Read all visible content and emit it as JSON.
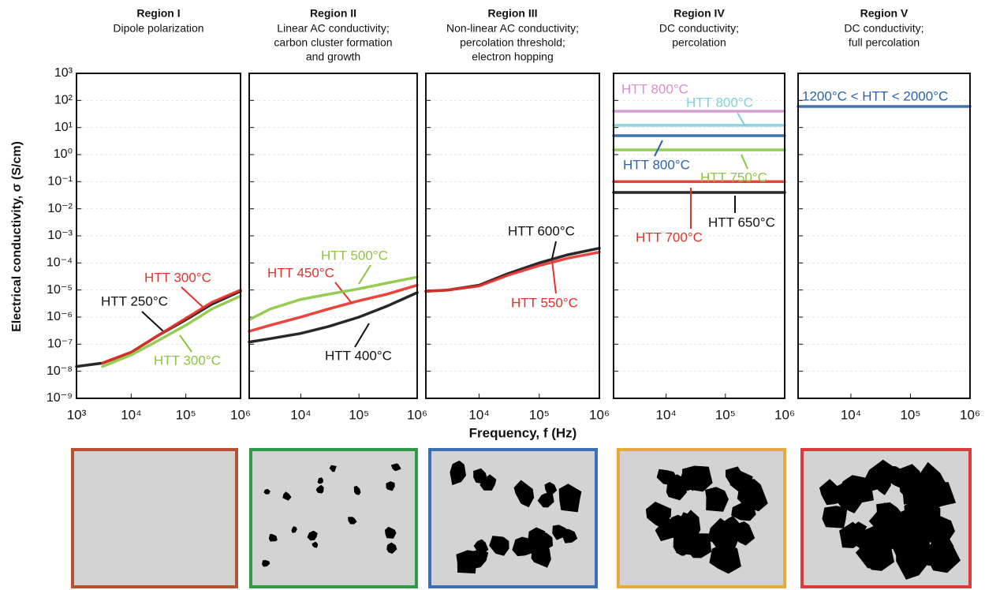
{
  "chart_data": [
    {
      "type": "line",
      "title": "Region I",
      "subtitle": [
        "Dipole polarization"
      ],
      "ylabel": "Electrical conductivity, σ (S/cm)",
      "xlog": true,
      "ylog": true,
      "grid": true,
      "x": [
        1000,
        3000,
        10000,
        30000,
        100000,
        300000,
        1000000
      ],
      "xlim": [
        1000,
        1000000
      ],
      "ylim": [
        1e-09,
        1000
      ],
      "xticks": [
        {
          "value": 1000,
          "label": "10³"
        },
        {
          "value": 10000,
          "label": "10⁴"
        },
        {
          "value": 100000,
          "label": "10⁵"
        },
        {
          "value": 1000000,
          "label": "10⁶"
        }
      ],
      "yticks": [
        {
          "value": 1e-09,
          "label": "10⁻⁹"
        },
        {
          "value": 1e-08,
          "label": "10⁻⁸"
        },
        {
          "value": 1e-07,
          "label": "10⁻⁷"
        },
        {
          "value": 1e-06,
          "label": "10⁻⁶"
        },
        {
          "value": 1e-05,
          "label": "10⁻⁵"
        },
        {
          "value": 0.0001,
          "label": "10⁻⁴"
        },
        {
          "value": 0.001,
          "label": "10⁻³"
        },
        {
          "value": 0.01,
          "label": "10⁻²"
        },
        {
          "value": 0.1,
          "label": "10⁻¹"
        },
        {
          "value": 1,
          "label": "10⁰"
        },
        {
          "value": 10,
          "label": "10¹"
        },
        {
          "value": 100,
          "label": "10²"
        },
        {
          "value": 1000,
          "label": "10³"
        }
      ],
      "series": [
        {
          "name": "HTT 250°C",
          "color": "#111111",
          "values": [
            1.5e-08,
            2e-08,
            5e-08,
            2e-07,
            8e-07,
            3e-06,
            9e-06
          ]
        },
        {
          "name": "HTT 300°C",
          "color": "#e8302a",
          "values": [
            null,
            2e-08,
            5e-08,
            2e-07,
            9e-07,
            3.5e-06,
            1e-05
          ]
        },
        {
          "name": "HTT 300°C",
          "color": "#8cc63f",
          "values": [
            null,
            1.5e-08,
            4e-08,
            1.3e-07,
            5e-07,
            2e-06,
            6e-06
          ]
        }
      ]
    },
    {
      "type": "line",
      "title": "Region II",
      "subtitle": [
        "Linear AC conductivity;",
        "carbon cluster formation",
        "and growth"
      ],
      "xlog": true,
      "ylog": true,
      "grid": true,
      "x": [
        1300,
        3000,
        10000,
        30000,
        100000,
        300000,
        1000000
      ],
      "xlim": [
        1300,
        1000000
      ],
      "ylim": [
        1e-09,
        1000
      ],
      "xticks": [
        {
          "value": 10000,
          "label": "10⁴"
        },
        {
          "value": 100000,
          "label": "10⁵"
        },
        {
          "value": 1000000,
          "label": "10⁶"
        }
      ],
      "series": [
        {
          "name": "HTT 400°C",
          "color": "#111111",
          "values": [
            1.2e-07,
            1.6e-07,
            2.5e-07,
            4.5e-07,
            1e-06,
            2.5e-06,
            8e-06
          ]
        },
        {
          "name": "HTT 450°C",
          "color": "#e8302a",
          "values": [
            3e-07,
            5e-07,
            1e-06,
            2e-06,
            4e-06,
            7e-06,
            1.5e-05
          ]
        },
        {
          "name": "HTT 500°C",
          "color": "#8cc63f",
          "values": [
            8e-07,
            2e-06,
            4.5e-06,
            7e-06,
            1.1e-05,
            1.8e-05,
            3e-05
          ]
        }
      ]
    },
    {
      "type": "line",
      "title": "Region III",
      "subtitle": [
        "Non-linear AC conductivity;",
        "percolation threshold;",
        "electron hopping"
      ],
      "xlabel": "Frequency, f (Hz)",
      "xlog": true,
      "ylog": true,
      "grid": true,
      "x": [
        1300,
        3000,
        10000,
        30000,
        100000,
        300000,
        1000000
      ],
      "xlim": [
        1300,
        1000000
      ],
      "ylim": [
        1e-09,
        1000
      ],
      "xticks": [
        {
          "value": 10000,
          "label": "10⁴"
        },
        {
          "value": 100000,
          "label": "10⁵"
        },
        {
          "value": 1000000,
          "label": "10⁶"
        }
      ],
      "series": [
        {
          "name": "HTT 600°C",
          "color": "#111111",
          "values": [
            9e-06,
            1e-05,
            1.5e-05,
            4e-05,
            0.0001,
            0.0002,
            0.00035
          ]
        },
        {
          "name": "HTT 550°C",
          "color": "#e8302a",
          "values": [
            9e-06,
            1e-05,
            1.4e-05,
            3.5e-05,
            8e-05,
            0.00015,
            0.00025
          ]
        }
      ]
    },
    {
      "type": "line",
      "title": "Region IV",
      "subtitle": [
        "DC conductivity;",
        "percolation"
      ],
      "xlog": true,
      "ylog": true,
      "grid": true,
      "x": [
        1300,
        3000,
        10000,
        30000,
        100000,
        300000,
        1000000
      ],
      "xlim": [
        1300,
        1000000
      ],
      "ylim": [
        1e-09,
        1000
      ],
      "xticks": [
        {
          "value": 10000,
          "label": "10⁴"
        },
        {
          "value": 100000,
          "label": "10⁵"
        },
        {
          "value": 1000000,
          "label": "10⁶"
        }
      ],
      "series": [
        {
          "name": "HTT 650°C",
          "color": "#111111",
          "values": [
            0.04,
            0.04,
            0.04,
            0.04,
            0.04,
            0.04,
            0.04
          ]
        },
        {
          "name": "HTT 700°C",
          "color": "#e8302a",
          "values": [
            0.1,
            0.1,
            0.1,
            0.1,
            0.1,
            0.1,
            0.1
          ]
        },
        {
          "name": "HTT 750°C",
          "color": "#8cc63f",
          "values": [
            1.5,
            1.5,
            1.5,
            1.5,
            1.5,
            1.5,
            1.5
          ]
        },
        {
          "name": "HTT 800°C",
          "color": "#2e62ae",
          "values": [
            5,
            5,
            5,
            5,
            5,
            5,
            5
          ]
        },
        {
          "name": "HTT 800°C",
          "color": "#7fd0dc",
          "values": [
            12,
            12,
            12,
            12,
            12,
            12,
            12
          ]
        },
        {
          "name": "HTT 800°C",
          "color": "#d58fcf",
          "values": [
            40,
            40,
            40,
            40,
            40,
            40,
            40
          ]
        }
      ]
    },
    {
      "type": "line",
      "title": "Region V",
      "subtitle": [
        "DC conductivity;",
        "full percolation"
      ],
      "xlog": true,
      "ylog": true,
      "grid": true,
      "x": [
        1300,
        3000,
        10000,
        30000,
        100000,
        300000,
        1000000
      ],
      "xlim": [
        1300,
        1000000
      ],
      "ylim": [
        1e-09,
        1000
      ],
      "xticks": [
        {
          "value": 10000,
          "label": "10⁴"
        },
        {
          "value": 100000,
          "label": "10⁵"
        },
        {
          "value": 1000000,
          "label": "10⁶"
        }
      ],
      "series": [
        {
          "name": "1200°C < HTT < 2000°C",
          "color": "#2e62ae",
          "values": [
            60,
            60,
            60,
            60,
            60,
            60,
            60
          ]
        }
      ]
    }
  ]
}
